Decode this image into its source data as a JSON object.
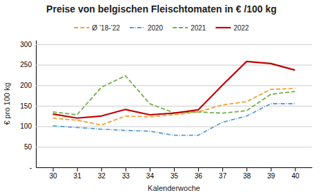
{
  "chart_data": {
    "type": "line",
    "title": "Preise von belgischen Fleischtomaten in € /100 kg",
    "xlabel": "Kalenderwoche",
    "ylabel": "€ pro 100 kg",
    "x": [
      30,
      31,
      32,
      33,
      34,
      35,
      36,
      37,
      38,
      39,
      40
    ],
    "series": [
      {
        "name": "Ø ’18-’22",
        "color": "#f0a030",
        "line_style": "dashed",
        "values": [
          120,
          115,
          103,
          125,
          123,
          128,
          135,
          152,
          160,
          190,
          192
        ]
      },
      {
        "name": "2020",
        "color": "#5b9bd5",
        "line_style": "dashdot",
        "values": [
          101,
          97,
          93,
          90,
          88,
          78,
          78,
          110,
          125,
          155,
          155
        ]
      },
      {
        "name": "2021",
        "color": "#70ad47",
        "line_style": "dashed",
        "values": [
          135,
          128,
          195,
          223,
          155,
          133,
          135,
          132,
          138,
          178,
          185
        ]
      },
      {
        "name": "2022",
        "color": "#c00000",
        "line_style": "solid",
        "values": [
          130,
          120,
          125,
          141,
          128,
          132,
          140,
          200,
          258,
          253,
          237
        ]
      }
    ],
    "xlim": [
      29.3,
      40.7
    ],
    "xticks": [
      30,
      31,
      32,
      33,
      34,
      35,
      36,
      37,
      38,
      39,
      40
    ],
    "ylim": [
      0,
      310
    ],
    "yticks": [
      {
        "value": 0,
        "label": "-"
      },
      50,
      100,
      150,
      200,
      250,
      300
    ],
    "grid": true,
    "legend": "top"
  }
}
